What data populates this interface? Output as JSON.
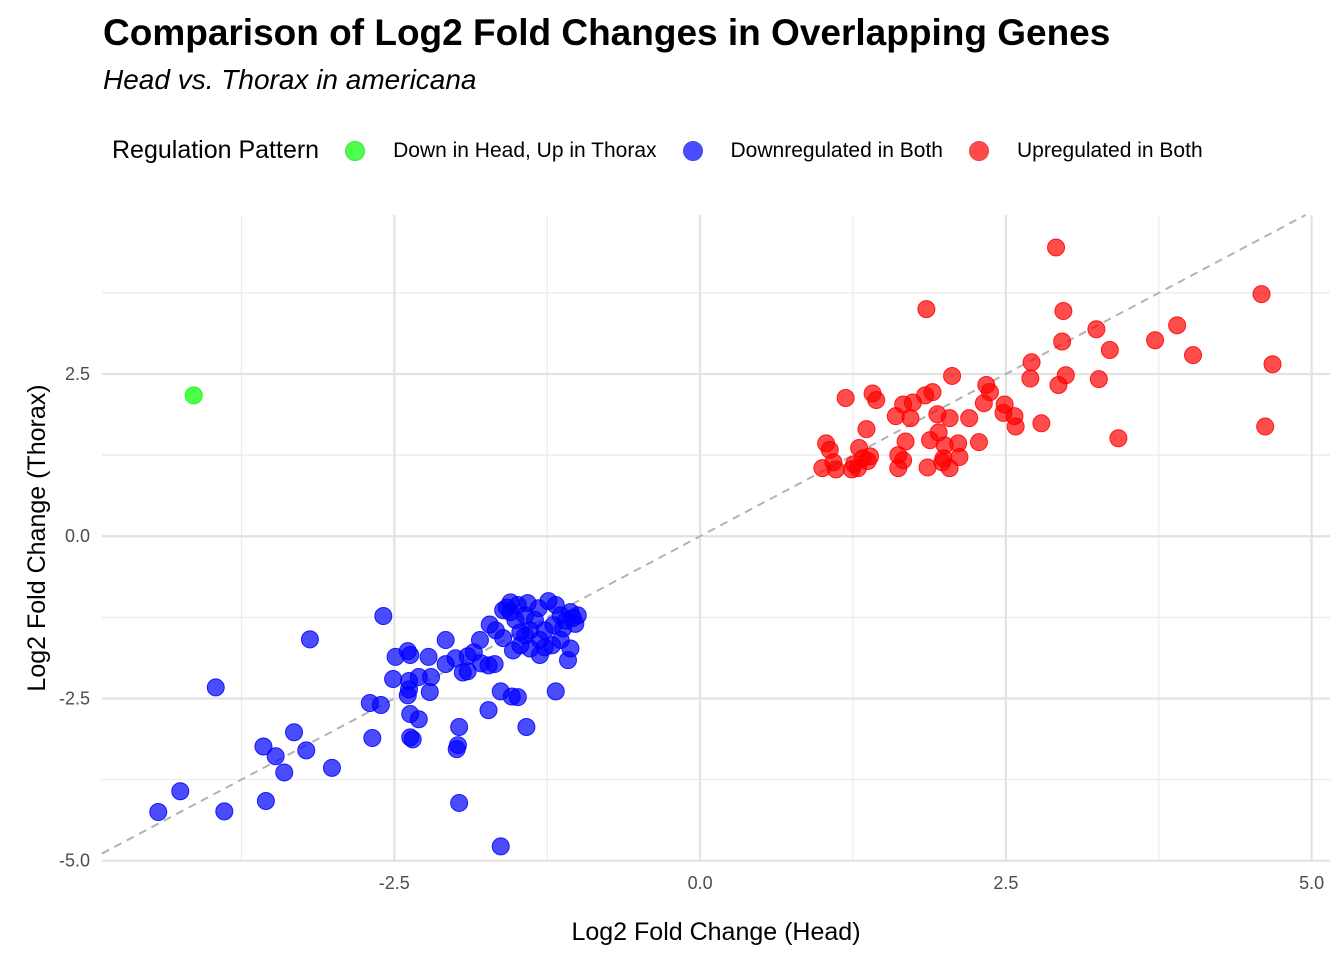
{
  "chart_data": {
    "type": "scatter",
    "title": "Comparison of Log2 Fold Changes in Overlapping Genes",
    "subtitle": "Head vs. Thorax in americana",
    "xlabel": "Log2 Fold Change (Head)",
    "ylabel": "Log2 Fold Change (Thorax)",
    "xlim": [
      -4.89,
      5.15
    ],
    "ylim": [
      -5.02,
      4.95
    ],
    "xticks": [
      -2.5,
      0.0,
      2.5,
      5.0
    ],
    "xtick_labels": [
      "-2.5",
      "0.0",
      "2.5",
      "5.0"
    ],
    "yticks": [
      -5.0,
      -2.5,
      0.0,
      2.5
    ],
    "ytick_labels": [
      "-5.0",
      "-2.5",
      "0.0",
      "2.5"
    ],
    "grid": true,
    "reference_line": "y = x (dashed)",
    "legend": {
      "title": "Regulation Pattern",
      "position": "top"
    },
    "series": [
      {
        "name": "Down in Head, Up in Thorax",
        "color": "#00ff00",
        "points": [
          [
            -4.14,
            2.17
          ]
        ]
      },
      {
        "name": "Downregulated in Both",
        "color": "#0000ff",
        "points": [
          [
            -1.63,
            -4.78
          ],
          [
            -4.43,
            -4.25
          ],
          [
            -4.25,
            -3.93
          ],
          [
            -3.89,
            -4.24
          ],
          [
            -3.55,
            -4.08
          ],
          [
            -1.97,
            -4.11
          ],
          [
            -3.01,
            -3.57
          ],
          [
            -3.4,
            -3.64
          ],
          [
            -3.47,
            -3.39
          ],
          [
            -3.57,
            -3.24
          ],
          [
            -3.22,
            -3.3
          ],
          [
            -3.32,
            -3.02
          ],
          [
            -1.99,
            -3.28
          ],
          [
            -1.98,
            -3.22
          ],
          [
            -2.68,
            -3.11
          ],
          [
            -2.35,
            -3.13
          ],
          [
            -2.37,
            -3.1
          ],
          [
            -1.97,
            -2.94
          ],
          [
            -1.42,
            -2.94
          ],
          [
            -2.7,
            -2.57
          ],
          [
            -2.61,
            -2.6
          ],
          [
            -2.37,
            -2.74
          ],
          [
            -2.3,
            -2.82
          ],
          [
            -3.96,
            -2.33
          ],
          [
            -1.73,
            -2.68
          ],
          [
            -2.39,
            -2.45
          ],
          [
            -2.38,
            -2.36
          ],
          [
            -2.21,
            -2.4
          ],
          [
            -1.63,
            -2.39
          ],
          [
            -1.49,
            -2.48
          ],
          [
            -1.54,
            -2.47
          ],
          [
            -1.18,
            -2.39
          ],
          [
            -2.51,
            -2.2
          ],
          [
            -2.38,
            -2.23
          ],
          [
            -2.3,
            -2.17
          ],
          [
            -2.2,
            -2.17
          ],
          [
            -3.19,
            -1.59
          ],
          [
            -2.59,
            -1.23
          ],
          [
            -2.49,
            -1.86
          ],
          [
            -2.37,
            -1.83
          ],
          [
            -2.39,
            -1.77
          ],
          [
            -2.22,
            -1.86
          ],
          [
            -2.08,
            -1.6
          ],
          [
            -2.08,
            -1.97
          ],
          [
            -2.0,
            -1.88
          ],
          [
            -1.94,
            -2.1
          ],
          [
            -1.9,
            -2.08
          ],
          [
            -1.9,
            -1.85
          ],
          [
            -1.85,
            -1.79
          ],
          [
            -1.79,
            -1.96
          ],
          [
            -1.73,
            -1.99
          ],
          [
            -1.68,
            -1.97
          ],
          [
            -1.8,
            -1.6
          ],
          [
            -1.72,
            -1.36
          ],
          [
            -1.67,
            -1.45
          ],
          [
            -1.61,
            -1.57
          ],
          [
            -1.55,
            -1.17
          ],
          [
            -1.53,
            -1.76
          ],
          [
            -1.47,
            -1.68
          ],
          [
            -1.39,
            -1.45
          ],
          [
            -1.31,
            -1.6
          ],
          [
            -1.24,
            -1.0
          ],
          [
            -1.21,
            -1.68
          ],
          [
            -1.14,
            -1.6
          ],
          [
            -1.08,
            -1.91
          ],
          [
            -1.06,
            -1.73
          ],
          [
            -1.14,
            -1.22
          ],
          [
            -1.06,
            -1.17
          ],
          [
            -1.04,
            -1.26
          ],
          [
            -1.2,
            -1.37
          ],
          [
            -1.27,
            -1.45
          ],
          [
            -1.35,
            -1.29
          ],
          [
            -1.43,
            -1.22
          ],
          [
            -1.49,
            -1.06
          ],
          [
            -1.41,
            -1.03
          ],
          [
            -1.32,
            -1.11
          ],
          [
            -1.55,
            -1.02
          ],
          [
            -1.61,
            -1.14
          ],
          [
            -1.51,
            -1.29
          ],
          [
            -1.43,
            -1.53
          ],
          [
            -1.31,
            -1.83
          ],
          [
            -1.18,
            -1.06
          ],
          [
            -1.12,
            -1.42
          ],
          [
            -1.27,
            -1.71
          ],
          [
            -1.39,
            -1.73
          ],
          [
            -1.47,
            -1.48
          ],
          [
            -1.58,
            -1.1
          ],
          [
            -1.1,
            -1.3
          ],
          [
            -1.0,
            -1.22
          ],
          [
            -1.02,
            -1.35
          ]
        ]
      },
      {
        "name": "Upregulated in Both",
        "color": "#ff0000",
        "points": [
          [
            2.91,
            4.45
          ],
          [
            1.85,
            3.5
          ],
          [
            2.97,
            3.47
          ],
          [
            4.59,
            3.73
          ],
          [
            3.9,
            3.25
          ],
          [
            3.24,
            3.19
          ],
          [
            3.72,
            3.02
          ],
          [
            2.96,
            3.0
          ],
          [
            3.35,
            2.87
          ],
          [
            4.03,
            2.79
          ],
          [
            2.71,
            2.68
          ],
          [
            4.68,
            2.65
          ],
          [
            2.99,
            2.48
          ],
          [
            3.26,
            2.42
          ],
          [
            2.7,
            2.43
          ],
          [
            2.93,
            2.33
          ],
          [
            2.06,
            2.47
          ],
          [
            2.34,
            2.33
          ],
          [
            2.37,
            2.22
          ],
          [
            1.41,
            2.2
          ],
          [
            1.19,
            2.13
          ],
          [
            1.44,
            2.1
          ],
          [
            1.9,
            2.22
          ],
          [
            1.84,
            2.17
          ],
          [
            1.74,
            2.06
          ],
          [
            1.66,
            2.03
          ],
          [
            2.32,
            2.05
          ],
          [
            2.49,
            2.03
          ],
          [
            1.6,
            1.85
          ],
          [
            1.72,
            1.82
          ],
          [
            1.94,
            1.88
          ],
          [
            2.04,
            1.82
          ],
          [
            2.2,
            1.82
          ],
          [
            2.48,
            1.9
          ],
          [
            2.57,
            1.85
          ],
          [
            2.58,
            1.69
          ],
          [
            2.79,
            1.74
          ],
          [
            4.62,
            1.69
          ],
          [
            3.42,
            1.51
          ],
          [
            1.36,
            1.65
          ],
          [
            1.03,
            1.43
          ],
          [
            1.06,
            1.33
          ],
          [
            1.3,
            1.36
          ],
          [
            1.68,
            1.46
          ],
          [
            1.88,
            1.48
          ],
          [
            2.0,
            1.4
          ],
          [
            2.11,
            1.43
          ],
          [
            2.28,
            1.45
          ],
          [
            1.95,
            1.6
          ],
          [
            1.39,
            1.23
          ],
          [
            1.33,
            1.2
          ],
          [
            1.62,
            1.25
          ],
          [
            1.66,
            1.17
          ],
          [
            1.99,
            1.2
          ],
          [
            2.12,
            1.22
          ],
          [
            1.26,
            1.11
          ],
          [
            1.37,
            1.16
          ],
          [
            1.09,
            1.14
          ],
          [
            1.0,
            1.05
          ],
          [
            1.11,
            1.03
          ],
          [
            1.24,
            1.03
          ],
          [
            1.29,
            1.05
          ],
          [
            1.62,
            1.05
          ],
          [
            1.86,
            1.06
          ],
          [
            2.04,
            1.05
          ],
          [
            1.98,
            1.14
          ]
        ]
      }
    ]
  }
}
